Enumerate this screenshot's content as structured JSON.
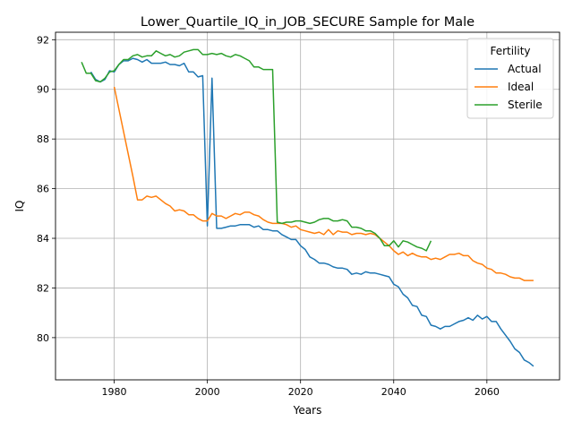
{
  "chart_data": {
    "type": "line",
    "title": "Lower_Quartile_IQ_in_JOB_SECURE Sample for Male",
    "xlabel": "Years",
    "ylabel": "IQ",
    "xlim": [
      1967.4,
      2075.6
    ],
    "ylim": [
      78.3,
      92.3
    ],
    "xticks": [
      1980,
      2000,
      2020,
      2040,
      2060
    ],
    "yticks": [
      80,
      82,
      84,
      86,
      88,
      90,
      92
    ],
    "grid": true,
    "legend": {
      "title": "Fertility",
      "placement": "top-right"
    },
    "series": [
      {
        "name": "Actual",
        "color": "#1f77b4",
        "x": [
          1975,
          1976,
          1977,
          1978,
          1979,
          1980,
          1981,
          1982,
          1983,
          1984,
          1985,
          1986,
          1987,
          1988,
          1989,
          1990,
          1991,
          1992,
          1993,
          1994,
          1995,
          1996,
          1997,
          1998,
          1999,
          2000,
          2001,
          2002,
          2003,
          2004,
          2005,
          2006,
          2007,
          2008,
          2009,
          2010,
          2011,
          2012,
          2013,
          2014,
          2015,
          2016,
          2017,
          2018,
          2019,
          2020,
          2021,
          2022,
          2023,
          2024,
          2025,
          2026,
          2027,
          2028,
          2029,
          2030,
          2031,
          2032,
          2033,
          2034,
          2035,
          2036,
          2037,
          2038,
          2039,
          2040,
          2041,
          2042,
          2043,
          2044,
          2045,
          2046,
          2047,
          2048,
          2049,
          2050,
          2051,
          2052,
          2053,
          2054,
          2055,
          2056,
          2057,
          2058,
          2059,
          2060,
          2061,
          2062,
          2063,
          2064,
          2065,
          2066,
          2067,
          2068,
          2069,
          2070
        ],
        "y": [
          90.7,
          90.4,
          90.3,
          90.4,
          90.75,
          90.7,
          91.0,
          91.15,
          91.15,
          91.25,
          91.2,
          91.1,
          91.2,
          91.05,
          91.05,
          91.05,
          91.1,
          91.0,
          91.0,
          90.95,
          91.05,
          90.7,
          90.7,
          90.5,
          90.55,
          84.5,
          90.45,
          84.4,
          84.4,
          84.45,
          84.5,
          84.5,
          84.55,
          84.55,
          84.55,
          84.45,
          84.5,
          84.35,
          84.35,
          84.3,
          84.3,
          84.15,
          84.05,
          83.95,
          83.95,
          83.7,
          83.55,
          83.25,
          83.15,
          83.0,
          83.0,
          82.95,
          82.85,
          82.8,
          82.8,
          82.75,
          82.55,
          82.6,
          82.55,
          82.65,
          82.6,
          82.6,
          82.55,
          82.5,
          82.45,
          82.15,
          82.05,
          81.75,
          81.6,
          81.3,
          81.25,
          80.9,
          80.85,
          80.5,
          80.45,
          80.35,
          80.45,
          80.45,
          80.55,
          80.65,
          80.7,
          80.8,
          80.7,
          80.9,
          80.75,
          80.85,
          80.65,
          80.65,
          80.35,
          80.1,
          79.85,
          79.55,
          79.4,
          79.1,
          79.0,
          78.85
        ]
      },
      {
        "name": "Ideal",
        "color": "#ff7f0e",
        "x": [
          1980,
          1981,
          1982,
          1983,
          1984,
          1985,
          1986,
          1987,
          1988,
          1989,
          1990,
          1991,
          1992,
          1993,
          1994,
          1995,
          1996,
          1997,
          1998,
          1999,
          2000,
          2001,
          2002,
          2003,
          2004,
          2005,
          2006,
          2007,
          2008,
          2009,
          2010,
          2011,
          2012,
          2013,
          2014,
          2015,
          2016,
          2017,
          2018,
          2019,
          2020,
          2021,
          2022,
          2023,
          2024,
          2025,
          2026,
          2027,
          2028,
          2029,
          2030,
          2031,
          2032,
          2033,
          2034,
          2035,
          2036,
          2037,
          2038,
          2039,
          2040,
          2041,
          2042,
          2043,
          2044,
          2045,
          2046,
          2047,
          2048,
          2049,
          2050,
          2051,
          2052,
          2053,
          2054,
          2055,
          2056,
          2057,
          2058,
          2059,
          2060,
          2061,
          2062,
          2063,
          2064,
          2065,
          2066,
          2067,
          2068,
          2069,
          2070
        ],
        "y": [
          90.1,
          89.2,
          88.3,
          87.4,
          86.5,
          85.55,
          85.55,
          85.7,
          85.65,
          85.7,
          85.55,
          85.4,
          85.3,
          85.1,
          85.15,
          85.1,
          84.95,
          84.95,
          84.8,
          84.7,
          84.7,
          85.0,
          84.9,
          84.9,
          84.8,
          84.9,
          85.0,
          84.95,
          85.05,
          85.05,
          84.95,
          84.9,
          84.75,
          84.65,
          84.6,
          84.6,
          84.6,
          84.55,
          84.45,
          84.5,
          84.35,
          84.3,
          84.25,
          84.2,
          84.25,
          84.15,
          84.35,
          84.15,
          84.3,
          84.25,
          84.25,
          84.15,
          84.2,
          84.2,
          84.15,
          84.2,
          84.15,
          84.0,
          83.85,
          83.7,
          83.5,
          83.35,
          83.45,
          83.3,
          83.4,
          83.3,
          83.25,
          83.25,
          83.15,
          83.2,
          83.15,
          83.25,
          83.35,
          83.35,
          83.4,
          83.3,
          83.3,
          83.1,
          83.0,
          82.95,
          82.8,
          82.75,
          82.6,
          82.6,
          82.55,
          82.45,
          82.4,
          82.4,
          82.3,
          82.3,
          82.3
        ]
      },
      {
        "name": "Sterile",
        "color": "#2ca02c",
        "x": [
          1973,
          1974,
          1975,
          1976,
          1977,
          1978,
          1979,
          1980,
          1981,
          1982,
          1983,
          1984,
          1985,
          1986,
          1987,
          1988,
          1989,
          1990,
          1991,
          1992,
          1993,
          1994,
          1995,
          1996,
          1997,
          1998,
          1999,
          2000,
          2001,
          2002,
          2003,
          2004,
          2005,
          2006,
          2007,
          2008,
          2009,
          2010,
          2011,
          2012,
          2013,
          2014,
          2015,
          2016,
          2017,
          2018,
          2019,
          2020,
          2021,
          2022,
          2023,
          2024,
          2025,
          2026,
          2027,
          2028,
          2029,
          2030,
          2031,
          2032,
          2033,
          2034,
          2035,
          2036,
          2037,
          2038,
          2039,
          2040,
          2041,
          2042,
          2043,
          2044,
          2045,
          2046,
          2047,
          2048
        ],
        "y": [
          91.1,
          90.65,
          90.65,
          90.35,
          90.3,
          90.45,
          90.7,
          90.75,
          91.0,
          91.2,
          91.2,
          91.35,
          91.4,
          91.3,
          91.35,
          91.35,
          91.55,
          91.45,
          91.35,
          91.4,
          91.3,
          91.35,
          91.5,
          91.55,
          91.6,
          91.6,
          91.4,
          91.4,
          91.45,
          91.4,
          91.45,
          91.35,
          91.3,
          91.4,
          91.35,
          91.25,
          91.15,
          90.9,
          90.9,
          90.8,
          90.8,
          90.8,
          84.65,
          84.6,
          84.65,
          84.65,
          84.7,
          84.7,
          84.65,
          84.6,
          84.65,
          84.75,
          84.8,
          84.8,
          84.7,
          84.7,
          84.75,
          84.7,
          84.45,
          84.45,
          84.4,
          84.3,
          84.3,
          84.2,
          84.0,
          83.7,
          83.7,
          83.9,
          83.65,
          83.9,
          83.85,
          83.75,
          83.65,
          83.6,
          83.5,
          83.9
        ]
      }
    ]
  }
}
